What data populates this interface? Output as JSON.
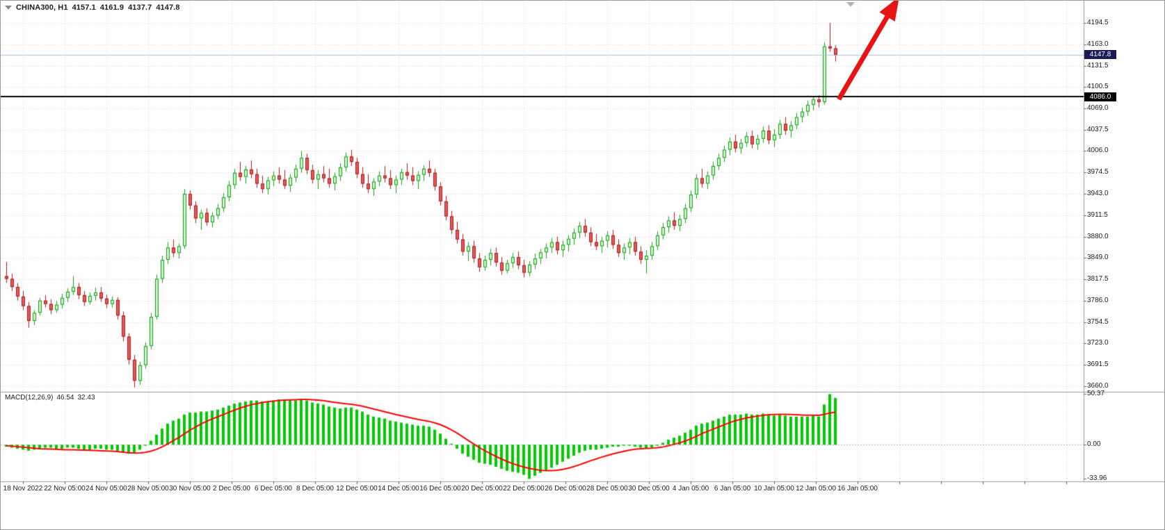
{
  "header": {
    "symbol_timeframe": "CHINA300, H1",
    "open": "4157.1",
    "high": "4161.9",
    "low": "4137.7",
    "close": "4147.8"
  },
  "price_axis": {
    "labels": [
      "4194.5",
      "4163.0",
      "4131.5",
      "4100.5",
      "4069.0",
      "4037.5",
      "4006.0",
      "3974.5",
      "3943.0",
      "3911.5",
      "3880.0",
      "3849.0",
      "3817.5",
      "3786.0",
      "3754.5",
      "3723.0",
      "3691.5",
      "3660.0"
    ],
    "current_price_tag": "4147.8",
    "hline_tag": "4086.0"
  },
  "time_axis": {
    "labels": [
      "18 Nov 2022",
      "22 Nov 05:00",
      "24 Nov 05:00",
      "28 Nov 05:00",
      "30 Nov 05:00",
      "2 Dec 05:00",
      "6 Dec 05:00",
      "8 Dec 05:00",
      "12 Dec 05:00",
      "14 Dec 05:00",
      "16 Dec 05:00",
      "20 Dec 05:00",
      "22 Dec 05:00",
      "26 Dec 05:00",
      "28 Dec 05:00",
      "30 Dec 05:00",
      "4 Jan 05:00",
      "6 Jan 05:00",
      "10 Jan 05:00",
      "12 Jan 05:00",
      "16 Jan 05:00"
    ]
  },
  "macd_panel": {
    "label": "MACD(12,26,9)",
    "macd_value": "46.54",
    "signal_value": "32.43",
    "axis_labels": [
      "50.37",
      "0.00",
      "-33.96"
    ]
  },
  "colors": {
    "grid": "#d6d6d6",
    "up_fill": "#ccf3cc",
    "up_border": "#0f9c0f",
    "down_fill": "#e05a5a",
    "down_border": "#b01818",
    "macd_histogram": "#00cc00",
    "macd_signal": "#ff0000",
    "hline": "#000000",
    "current_price_line": "#a8c0d8",
    "current_tag_bg": "#1b1b55",
    "hline_tag_bg": "#000000",
    "arrow": "#e81414",
    "separator": "#9a9a9a",
    "axis_text": "#1a1a1a"
  },
  "chart_data": {
    "type": "candlestick",
    "symbol": "CHINA300",
    "timeframe": "H1",
    "title": "CHINA300, H1 4157.1 4161.9 4137.7 4147.8",
    "price_range": [
      3660.0,
      4194.5
    ],
    "price_ticks": [
      4194.5,
      4163.0,
      4131.5,
      4100.5,
      4069.0,
      4037.5,
      4006.0,
      3974.5,
      3943.0,
      3911.5,
      3880.0,
      3849.0,
      3817.5,
      3786.0,
      3754.5,
      3723.0,
      3691.5,
      3660.0
    ],
    "horizontal_line": 4086.0,
    "last_price": 4147.8,
    "ohlc_current": {
      "open": 4157.1,
      "high": 4161.9,
      "low": 4137.7,
      "close": 4147.8
    },
    "grid": true,
    "candles": [
      [
        3822,
        3843,
        3812,
        3818
      ],
      [
        3818,
        3826,
        3800,
        3806
      ],
      [
        3806,
        3812,
        3786,
        3792
      ],
      [
        3792,
        3800,
        3772,
        3778
      ],
      [
        3778,
        3784,
        3746,
        3756
      ],
      [
        3756,
        3772,
        3750,
        3768
      ],
      [
        3768,
        3790,
        3764,
        3786
      ],
      [
        3786,
        3794,
        3776,
        3781
      ],
      [
        3781,
        3788,
        3766,
        3772
      ],
      [
        3772,
        3785,
        3768,
        3780
      ],
      [
        3780,
        3796,
        3774,
        3790
      ],
      [
        3790,
        3804,
        3784,
        3799
      ],
      [
        3799,
        3822,
        3794,
        3806
      ],
      [
        3806,
        3812,
        3788,
        3794
      ],
      [
        3794,
        3800,
        3778,
        3784
      ],
      [
        3784,
        3798,
        3780,
        3793
      ],
      [
        3793,
        3805,
        3786,
        3798
      ],
      [
        3798,
        3806,
        3784,
        3789
      ],
      [
        3789,
        3795,
        3775,
        3781
      ],
      [
        3781,
        3792,
        3776,
        3787
      ],
      [
        3787,
        3791,
        3758,
        3764
      ],
      [
        3764,
        3770,
        3726,
        3733
      ],
      [
        3733,
        3738,
        3692,
        3699
      ],
      [
        3699,
        3706,
        3658,
        3668
      ],
      [
        3668,
        3696,
        3662,
        3691
      ],
      [
        3691,
        3724,
        3686,
        3719
      ],
      [
        3719,
        3768,
        3714,
        3762
      ],
      [
        3762,
        3824,
        3758,
        3818
      ],
      [
        3818,
        3852,
        3812,
        3846
      ],
      [
        3846,
        3872,
        3840,
        3864
      ],
      [
        3864,
        3876,
        3850,
        3856
      ],
      [
        3856,
        3870,
        3848,
        3866
      ],
      [
        3866,
        3950,
        3862,
        3943
      ],
      [
        3943,
        3948,
        3920,
        3926
      ],
      [
        3926,
        3932,
        3900,
        3907
      ],
      [
        3907,
        3920,
        3890,
        3915
      ],
      [
        3915,
        3922,
        3896,
        3901
      ],
      [
        3901,
        3916,
        3894,
        3911
      ],
      [
        3911,
        3928,
        3906,
        3922
      ],
      [
        3922,
        3944,
        3916,
        3938
      ],
      [
        3938,
        3962,
        3932,
        3956
      ],
      [
        3956,
        3980,
        3950,
        3974
      ],
      [
        3974,
        3990,
        3962,
        3968
      ],
      [
        3968,
        3984,
        3958,
        3979
      ],
      [
        3979,
        3992,
        3966,
        3972
      ],
      [
        3972,
        3980,
        3952,
        3958
      ],
      [
        3958,
        3970,
        3944,
        3950
      ],
      [
        3950,
        3968,
        3942,
        3963
      ],
      [
        3963,
        3976,
        3954,
        3970
      ],
      [
        3970,
        3982,
        3958,
        3964
      ],
      [
        3964,
        3978,
        3950,
        3955
      ],
      [
        3955,
        3972,
        3946,
        3967
      ],
      [
        3967,
        3986,
        3960,
        3980
      ],
      [
        3980,
        4006,
        3974,
        3996
      ],
      [
        3996,
        4002,
        3972,
        3978
      ],
      [
        3978,
        3986,
        3958,
        3964
      ],
      [
        3964,
        3978,
        3950,
        3972
      ],
      [
        3972,
        3984,
        3960,
        3966
      ],
      [
        3966,
        3980,
        3952,
        3958
      ],
      [
        3958,
        3974,
        3948,
        3969
      ],
      [
        3969,
        3988,
        3962,
        3982
      ],
      [
        3982,
        4004,
        3976,
        3998
      ],
      [
        3998,
        4008,
        3984,
        3990
      ],
      [
        3990,
        3996,
        3966,
        3972
      ],
      [
        3972,
        3982,
        3952,
        3958
      ],
      [
        3958,
        3972,
        3944,
        3950
      ],
      [
        3950,
        3966,
        3940,
        3961
      ],
      [
        3961,
        3976,
        3954,
        3970
      ],
      [
        3970,
        3984,
        3960,
        3966
      ],
      [
        3966,
        3978,
        3950,
        3956
      ],
      [
        3956,
        3970,
        3944,
        3964
      ],
      [
        3964,
        3980,
        3956,
        3975
      ],
      [
        3975,
        3988,
        3964,
        3970
      ],
      [
        3970,
        3982,
        3956,
        3962
      ],
      [
        3962,
        3976,
        3950,
        3971
      ],
      [
        3971,
        3985,
        3962,
        3980
      ],
      [
        3980,
        3992,
        3968,
        3974
      ],
      [
        3974,
        3980,
        3948,
        3954
      ],
      [
        3954,
        3960,
        3926,
        3932
      ],
      [
        3932,
        3940,
        3904,
        3910
      ],
      [
        3910,
        3918,
        3884,
        3890
      ],
      [
        3890,
        3902,
        3870,
        3876
      ],
      [
        3876,
        3884,
        3852,
        3858
      ],
      [
        3858,
        3872,
        3844,
        3866
      ],
      [
        3866,
        3874,
        3842,
        3848
      ],
      [
        3848,
        3856,
        3828,
        3835
      ],
      [
        3835,
        3852,
        3830,
        3846
      ],
      [
        3846,
        3862,
        3838,
        3856
      ],
      [
        3856,
        3864,
        3836,
        3842
      ],
      [
        3842,
        3850,
        3824,
        3830
      ],
      [
        3830,
        3846,
        3826,
        3841
      ],
      [
        3841,
        3856,
        3834,
        3850
      ],
      [
        3850,
        3858,
        3832,
        3838
      ],
      [
        3838,
        3846,
        3820,
        3827
      ],
      [
        3827,
        3844,
        3822,
        3839
      ],
      [
        3839,
        3855,
        3832,
        3848
      ],
      [
        3848,
        3862,
        3840,
        3857
      ],
      [
        3857,
        3870,
        3848,
        3864
      ],
      [
        3864,
        3878,
        3856,
        3872
      ],
      [
        3872,
        3880,
        3854,
        3860
      ],
      [
        3860,
        3874,
        3850,
        3868
      ],
      [
        3868,
        3882,
        3858,
        3877
      ],
      [
        3877,
        3892,
        3868,
        3886
      ],
      [
        3886,
        3902,
        3878,
        3896
      ],
      [
        3896,
        3906,
        3880,
        3886
      ],
      [
        3886,
        3894,
        3866,
        3872
      ],
      [
        3872,
        3884,
        3860,
        3866
      ],
      [
        3866,
        3880,
        3856,
        3874
      ],
      [
        3874,
        3888,
        3864,
        3882
      ],
      [
        3882,
        3890,
        3862,
        3868
      ],
      [
        3868,
        3876,
        3850,
        3856
      ],
      [
        3856,
        3870,
        3846,
        3864
      ],
      [
        3864,
        3878,
        3854,
        3872
      ],
      [
        3872,
        3880,
        3852,
        3858
      ],
      [
        3858,
        3866,
        3840,
        3846
      ],
      [
        3846,
        3860,
        3826,
        3852
      ],
      [
        3852,
        3872,
        3846,
        3866
      ],
      [
        3866,
        3888,
        3860,
        3882
      ],
      [
        3882,
        3900,
        3876,
        3894
      ],
      [
        3894,
        3910,
        3886,
        3904
      ],
      [
        3904,
        3916,
        3890,
        3896
      ],
      [
        3896,
        3912,
        3888,
        3906
      ],
      [
        3906,
        3928,
        3900,
        3922
      ],
      [
        3922,
        3948,
        3916,
        3942
      ],
      [
        3942,
        3972,
        3936,
        3966
      ],
      [
        3966,
        3980,
        3952,
        3958
      ],
      [
        3958,
        3976,
        3950,
        3970
      ],
      [
        3970,
        3990,
        3964,
        3984
      ],
      [
        3984,
        4002,
        3978,
        3996
      ],
      [
        3996,
        4014,
        3990,
        4008
      ],
      [
        4008,
        4026,
        4000,
        4020
      ],
      [
        4020,
        4030,
        4004,
        4010
      ],
      [
        4010,
        4024,
        4002,
        4018
      ],
      [
        4018,
        4034,
        4012,
        4028
      ],
      [
        4028,
        4036,
        4010,
        4016
      ],
      [
        4016,
        4030,
        4008,
        4024
      ],
      [
        4024,
        4042,
        4018,
        4036
      ],
      [
        4036,
        4044,
        4016,
        4022
      ],
      [
        4022,
        4038,
        4012,
        4030
      ],
      [
        4030,
        4052,
        4024,
        4046
      ],
      [
        4046,
        4056,
        4030,
        4036
      ],
      [
        4036,
        4050,
        4026,
        4044
      ],
      [
        4044,
        4062,
        4038,
        4056
      ],
      [
        4056,
        4070,
        4048,
        4064
      ],
      [
        4064,
        4080,
        4058,
        4074
      ],
      [
        4074,
        4086,
        4066,
        4082
      ],
      [
        4082,
        4088,
        4070,
        4078
      ],
      [
        4078,
        4166,
        4074,
        4160
      ],
      [
        4160,
        4194.5,
        4152,
        4157
      ],
      [
        4157.1,
        4161.9,
        4137.7,
        4147.8
      ]
    ],
    "macd": {
      "params": "12,26,9",
      "macd_value": 46.54,
      "signal_value": 32.43,
      "axis_ticks": [
        50.37,
        0.0,
        -33.96
      ],
      "histogram": [
        -2,
        -3,
        -4,
        -5,
        -6,
        -5,
        -4,
        -3,
        -3,
        -4,
        -4,
        -3,
        -3,
        -4,
        -5,
        -5,
        -4,
        -4,
        -5,
        -5,
        -6,
        -8,
        -9,
        -8,
        -5,
        -1,
        4,
        10,
        16,
        21,
        24,
        26,
        30,
        32,
        32,
        33,
        33,
        34,
        35,
        37,
        39,
        41,
        42,
        43,
        44,
        44,
        43,
        43,
        44,
        45,
        45,
        44,
        44,
        45,
        44,
        42,
        41,
        40,
        38,
        37,
        36,
        37,
        37,
        35,
        33,
        30,
        28,
        27,
        26,
        24,
        23,
        22,
        21,
        20,
        19,
        19,
        18,
        15,
        11,
        6,
        1,
        -4,
        -9,
        -12,
        -15,
        -18,
        -19,
        -20,
        -22,
        -24,
        -26,
        -27,
        -28,
        -30,
        -33.96,
        -31,
        -28,
        -26,
        -23,
        -20,
        -17,
        -14,
        -11,
        -8,
        -6,
        -5,
        -5,
        -4,
        -3,
        -2,
        -2,
        -1,
        -1,
        -2,
        -3,
        -4,
        -3,
        -1,
        2,
        5,
        7,
        9,
        12,
        15,
        19,
        21,
        22,
        24,
        26,
        28,
        30,
        30,
        30,
        31,
        30,
        30,
        31,
        30,
        29,
        30,
        29,
        28,
        28,
        28,
        28,
        29,
        28,
        40,
        50.37,
        46.54
      ],
      "signal": [
        -1,
        -1.5,
        -2,
        -2.5,
        -3,
        -3.5,
        -4,
        -4.2,
        -4.4,
        -4.6,
        -4.8,
        -5,
        -5,
        -5.2,
        -5.4,
        -5.6,
        -5.8,
        -6,
        -6.2,
        -6.4,
        -6.8,
        -7.4,
        -8,
        -8.4,
        -8.2,
        -7.6,
        -6.4,
        -4.6,
        -2.2,
        0.8,
        4,
        7.2,
        10.8,
        14.4,
        17.6,
        20.6,
        23.2,
        25.6,
        27.8,
        30,
        32.2,
        34.4,
        36.4,
        38.2,
        39.8,
        41,
        42,
        42.8,
        43.4,
        44,
        44.4,
        44.6,
        44.8,
        45,
        45,
        44.8,
        44.4,
        43.8,
        43,
        42.2,
        41.4,
        40.8,
        40.2,
        39.4,
        38.4,
        37,
        35.6,
        34.2,
        32.8,
        31.4,
        30,
        28.8,
        27.6,
        26.4,
        25.2,
        24.2,
        23.2,
        21.8,
        20,
        17.6,
        14.8,
        11.6,
        8,
        4.4,
        0.8,
        -2.8,
        -6,
        -8.8,
        -11.6,
        -14.2,
        -16.6,
        -18.8,
        -20.6,
        -22.2,
        -23.6,
        -24.6,
        -25.4,
        -25.8,
        -25.8,
        -25.4,
        -24.6,
        -23.4,
        -21.8,
        -20,
        -18,
        -16,
        -14.2,
        -12.4,
        -10.8,
        -9.2,
        -7.8,
        -6.6,
        -5.4,
        -4.6,
        -4,
        -3.6,
        -3.4,
        -3,
        -2.2,
        -1,
        0.4,
        1.8,
        3.6,
        5.8,
        8.4,
        11,
        13.2,
        15.4,
        17.6,
        19.8,
        22,
        23.8,
        25.2,
        26.6,
        27.6,
        28.4,
        29.2,
        29.8,
        30,
        30.2,
        30.2,
        30,
        29.8,
        29.6,
        29.4,
        29.4,
        29.2,
        30.2,
        31.5,
        32.43
      ]
    }
  }
}
